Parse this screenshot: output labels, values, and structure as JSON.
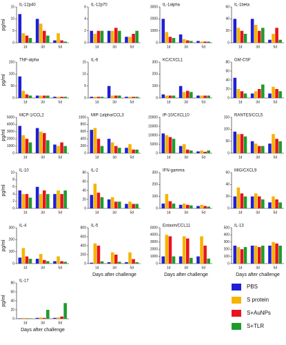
{
  "legend": [
    {
      "name": "PBS",
      "color": "#1f1fd6"
    },
    {
      "name": "S protein",
      "color": "#f5b400"
    },
    {
      "name": "S+AuNPs",
      "color": "#e8141b"
    },
    {
      "name": "S+TLR",
      "color": "#1f9b2e"
    }
  ],
  "chart_data": [
    {
      "type": "bar",
      "title": "IL-12p40",
      "ylabel": "pg/ml",
      "categories": [
        "1d",
        "3d",
        "5d"
      ],
      "series": [
        {
          "values": [
            12,
            10,
            1
          ]
        },
        {
          "values": [
            4,
            8,
            4
          ]
        },
        {
          "values": [
            3,
            5,
            1
          ]
        },
        {
          "values": [
            2,
            3,
            0.5
          ]
        }
      ],
      "ylim": [
        0,
        15
      ],
      "yticks": [
        0,
        5,
        10,
        15
      ]
    },
    {
      "type": "bar",
      "title": "IL-12p70",
      "categories": [
        "1d",
        "3d",
        "5d"
      ],
      "series": [
        {
          "values": [
            2,
            2,
            1
          ]
        },
        {
          "values": [
            1.5,
            2,
            1
          ]
        },
        {
          "values": [
            2,
            2.5,
            1.5
          ]
        },
        {
          "values": [
            2,
            2,
            2
          ]
        }
      ],
      "ylim": [
        0,
        6
      ],
      "yticks": [
        0,
        2,
        4,
        6
      ]
    },
    {
      "type": "bar",
      "title": "IL-1alpha",
      "categories": [
        "1d",
        "3d",
        "5d"
      ],
      "series": [
        {
          "values": [
            2000,
            700,
            150
          ]
        },
        {
          "values": [
            900,
            300,
            100
          ]
        },
        {
          "values": [
            500,
            200,
            100
          ]
        },
        {
          "values": [
            400,
            150,
            100
          ]
        }
      ],
      "ylim": [
        0,
        3000
      ],
      "yticks": [
        0,
        1000,
        2000,
        3000
      ]
    },
    {
      "type": "bar",
      "title": "IL-1beta",
      "categories": [
        "1d",
        "3d",
        "5d"
      ],
      "series": [
        {
          "values": [
            40,
            40,
            5
          ]
        },
        {
          "values": [
            25,
            30,
            15
          ]
        },
        {
          "values": [
            20,
            20,
            25
          ]
        },
        {
          "values": [
            15,
            25,
            5
          ]
        }
      ],
      "ylim": [
        0,
        60
      ],
      "yticks": [
        0,
        20,
        40,
        60
      ]
    },
    {
      "type": "bar",
      "title": "TNF-alpha",
      "ylabel": "pg/ml",
      "categories": [
        "1d",
        "3d",
        "5d"
      ],
      "series": [
        {
          "values": [
            90,
            10,
            5
          ]
        },
        {
          "values": [
            30,
            10,
            5
          ]
        },
        {
          "values": [
            15,
            10,
            5
          ]
        },
        {
          "values": [
            10,
            10,
            5
          ]
        }
      ],
      "ylim": [
        0,
        150
      ],
      "yticks": [
        0,
        50,
        100,
        150
      ]
    },
    {
      "type": "bar",
      "title": "IL-6",
      "categories": [
        "1d",
        "3d",
        "5d"
      ],
      "series": [
        {
          "values": [
            0.5,
            5,
            0.5
          ]
        },
        {
          "values": [
            0.5,
            1,
            0.5
          ]
        },
        {
          "values": [
            0.5,
            1,
            0.5
          ]
        },
        {
          "values": [
            0.5,
            1,
            0.5
          ]
        }
      ],
      "ylim": [
        0,
        15
      ],
      "yticks": [
        0,
        5,
        10,
        15
      ]
    },
    {
      "type": "bar",
      "title": "KC/CXCL1",
      "categories": [
        "1d",
        "3d",
        "5d"
      ],
      "series": [
        {
          "values": [
            30,
            100,
            20
          ]
        },
        {
          "values": [
            20,
            50,
            20
          ]
        },
        {
          "values": [
            20,
            60,
            20
          ]
        },
        {
          "values": [
            20,
            50,
            20
          ]
        }
      ],
      "ylim": [
        0,
        300
      ],
      "yticks": [
        0,
        100,
        200,
        300
      ]
    },
    {
      "type": "bar",
      "title": "GM-CSF",
      "categories": [
        "1d",
        "3d",
        "5d"
      ],
      "series": [
        {
          "values": [
            45,
            10,
            10
          ]
        },
        {
          "values": [
            20,
            15,
            25
          ]
        },
        {
          "values": [
            15,
            20,
            20
          ]
        },
        {
          "values": [
            10,
            30,
            15
          ]
        }
      ],
      "ylim": [
        0,
        80
      ],
      "yticks": [
        0,
        20,
        40,
        60,
        80
      ]
    },
    {
      "type": "bar",
      "title": "MCP-1/CCL2",
      "ylabel": "pg/ml",
      "categories": [
        "1d",
        "3d",
        "5d"
      ],
      "series": [
        {
          "values": [
            3800,
            3500,
            1200
          ]
        },
        {
          "values": [
            2500,
            3000,
            1000
          ]
        },
        {
          "values": [
            2000,
            2800,
            1500
          ]
        },
        {
          "values": [
            1500,
            1800,
            1000
          ]
        }
      ],
      "ylim": [
        0,
        5000
      ],
      "yticks": [
        0,
        1000,
        2000,
        3000,
        4000,
        5000
      ]
    },
    {
      "type": "bar",
      "title": "MIP-1alpha/CCL3",
      "categories": [
        "1d",
        "3d",
        "5d"
      ],
      "series": [
        {
          "values": [
            650,
            400,
            150
          ]
        },
        {
          "values": [
            700,
            300,
            250
          ]
        },
        {
          "values": [
            400,
            200,
            100
          ]
        },
        {
          "values": [
            200,
            150,
            100
          ]
        }
      ],
      "ylim": [
        0,
        1000
      ],
      "yticks": [
        0,
        200,
        400,
        600,
        800,
        1000
      ]
    },
    {
      "type": "bar",
      "title": "IP-10/CXCL10",
      "categories": [
        "1d",
        "3d",
        "5d"
      ],
      "series": [
        {
          "values": [
            11000,
            4000,
            1000
          ]
        },
        {
          "values": [
            10000,
            5000,
            1500
          ]
        },
        {
          "values": [
            9000,
            2000,
            800
          ]
        },
        {
          "values": [
            8000,
            1500,
            1500
          ]
        }
      ],
      "ylim": [
        0,
        20000
      ],
      "yticks": [
        0,
        5000,
        10000,
        15000,
        20000
      ]
    },
    {
      "type": "bar",
      "title": "RANTES/CCL5",
      "categories": [
        "1d",
        "3d",
        "5d"
      ],
      "series": [
        {
          "values": [
            90,
            50,
            40
          ]
        },
        {
          "values": [
            80,
            40,
            80
          ]
        },
        {
          "values": [
            80,
            30,
            60
          ]
        },
        {
          "values": [
            70,
            30,
            50
          ]
        }
      ],
      "ylim": [
        0,
        150
      ],
      "yticks": [
        0,
        50,
        100,
        150
      ]
    },
    {
      "type": "bar",
      "title": "IL-10",
      "ylabel": "pg/ml",
      "categories": [
        "1d",
        "3d",
        "5d"
      ],
      "series": [
        {
          "values": [
            5,
            6,
            4
          ]
        },
        {
          "values": [
            4,
            4,
            5
          ]
        },
        {
          "values": [
            4,
            5,
            4
          ]
        },
        {
          "values": [
            3,
            4,
            5
          ]
        }
      ],
      "ylim": [
        0,
        10
      ],
      "yticks": [
        0,
        2,
        4,
        6,
        8,
        10
      ]
    },
    {
      "type": "bar",
      "title": "IL-2",
      "categories": [
        "1d",
        "3d",
        "5d"
      ],
      "series": [
        {
          "values": [
            30,
            20,
            10
          ]
        },
        {
          "values": [
            55,
            25,
            15
          ]
        },
        {
          "values": [
            35,
            15,
            10
          ]
        },
        {
          "values": [
            25,
            15,
            10
          ]
        }
      ],
      "ylim": [
        0,
        80
      ],
      "yticks": [
        0,
        20,
        40,
        60,
        80
      ]
    },
    {
      "type": "bar",
      "title": "IFN-gamma",
      "categories": [
        "1d",
        "3d",
        "5d"
      ],
      "series": [
        {
          "values": [
            40,
            30,
            20
          ]
        },
        {
          "values": [
            120,
            40,
            30
          ]
        },
        {
          "values": [
            60,
            30,
            20
          ]
        },
        {
          "values": [
            40,
            25,
            15
          ]
        }
      ],
      "ylim": [
        0,
        300
      ],
      "yticks": [
        0,
        100,
        200,
        300
      ]
    },
    {
      "type": "bar",
      "title": "MIG/CXCL9",
      "categories": [
        "1d",
        "3d",
        "5d"
      ],
      "series": [
        {
          "values": [
            20,
            20,
            10
          ]
        },
        {
          "values": [
            35,
            25,
            20
          ]
        },
        {
          "values": [
            25,
            20,
            15
          ]
        },
        {
          "values": [
            20,
            15,
            10
          ]
        }
      ],
      "ylim": [
        0,
        60
      ],
      "yticks": [
        0,
        20,
        40,
        60
      ]
    },
    {
      "type": "bar",
      "title": "IL-4",
      "ylabel": "pg/ml",
      "categories": [
        "1d",
        "3d",
        "5d"
      ],
      "series": [
        {
          "values": [
            50,
            40,
            20
          ]
        },
        {
          "values": [
            130,
            80,
            60
          ]
        },
        {
          "values": [
            60,
            30,
            20
          ]
        },
        {
          "values": [
            40,
            20,
            15
          ]
        }
      ],
      "ylim": [
        0,
        300
      ],
      "yticks": [
        0,
        100,
        200,
        300
      ]
    },
    {
      "type": "bar",
      "title": "IL-5",
      "xlabel": "Days after challenge",
      "categories": [
        "1d",
        "3d",
        "5d"
      ],
      "series": [
        {
          "values": [
            20,
            30,
            30
          ]
        },
        {
          "values": [
            450,
            250,
            250
          ]
        },
        {
          "values": [
            400,
            200,
            100
          ]
        },
        {
          "values": [
            50,
            40,
            30
          ]
        }
      ],
      "ylim": [
        0,
        800
      ],
      "yticks": [
        0,
        200,
        400,
        600,
        800
      ]
    },
    {
      "type": "bar",
      "title": "Eotaxin/CCL11",
      "xlabel": "Days after challenge",
      "categories": [
        "1d",
        "3d",
        "5d"
      ],
      "series": [
        {
          "values": [
            1000,
            1000,
            1000
          ]
        },
        {
          "values": [
            4000,
            3800,
            3800
          ]
        },
        {
          "values": [
            3800,
            3500,
            2500
          ]
        },
        {
          "values": [
            1000,
            800,
            700
          ]
        }
      ],
      "ylim": [
        0,
        5000
      ],
      "yticks": [
        0,
        1000,
        2000,
        3000,
        4000,
        5000
      ]
    },
    {
      "type": "bar",
      "title": "IL-13",
      "xlabel": "Days after challenge",
      "categories": [
        "1d",
        "3d",
        "5d"
      ],
      "series": [
        {
          "values": [
            250,
            250,
            250
          ]
        },
        {
          "values": [
            230,
            250,
            300
          ]
        },
        {
          "values": [
            200,
            230,
            280
          ]
        },
        {
          "values": [
            230,
            250,
            250
          ]
        }
      ],
      "ylim": [
        0,
        500
      ],
      "yticks": [
        0,
        100,
        200,
        300,
        400,
        500
      ]
    },
    {
      "type": "bar",
      "title": "IL-17",
      "ylabel": "pg/ml",
      "xlabel": "Days after challenge",
      "categories": [
        "1d",
        "3d",
        "5d"
      ],
      "series": [
        {
          "values": [
            1,
            2,
            2
          ]
        },
        {
          "values": [
            2,
            3,
            3
          ]
        },
        {
          "values": [
            1,
            2,
            5
          ]
        },
        {
          "values": [
            1,
            20,
            35
          ]
        }
      ],
      "ylim": [
        0,
        80
      ],
      "yticks": [
        0,
        20,
        40,
        60,
        80
      ]
    }
  ]
}
